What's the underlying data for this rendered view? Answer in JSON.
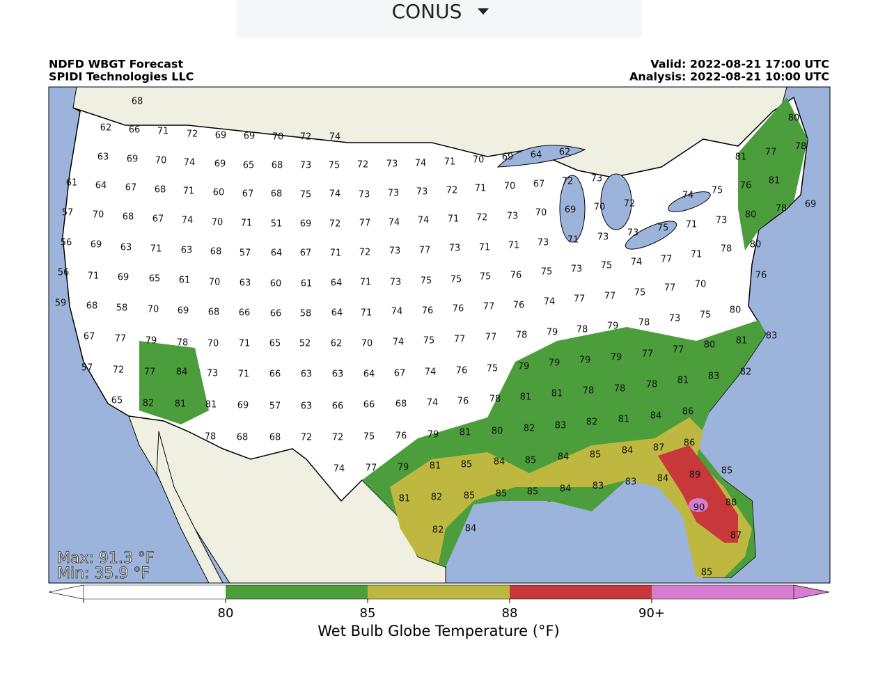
{
  "header": {
    "selector": "CONUS"
  },
  "map": {
    "title": "NDFD WBGT Forecast",
    "credit": "SPIDI Technologies LLC",
    "valid": "Valid: 2022-08-21 17:00 UTC",
    "analysis": "Analysis: 2022-08-21 10:00 UTC",
    "max": "Max: 91.3 °F",
    "min": "Min: 35.9 °F",
    "stations": [
      68,
      62,
      66,
      71,
      72,
      69,
      69,
      70,
      72,
      74,
      63,
      69,
      70,
      74,
      69,
      65,
      68,
      73,
      75,
      72,
      73,
      74,
      71,
      70,
      69,
      64,
      62,
      81,
      77,
      80,
      78,
      61,
      64,
      67,
      68,
      71,
      60,
      67,
      68,
      75,
      74,
      73,
      73,
      73,
      72,
      71,
      70,
      67,
      72,
      73,
      74,
      75,
      76,
      81,
      57,
      70,
      68,
      67,
      74,
      70,
      71,
      51,
      69,
      72,
      77,
      74,
      74,
      71,
      72,
      73,
      70,
      69,
      70,
      72,
      75,
      71,
      73,
      80,
      69,
      78,
      56,
      69,
      63,
      71,
      63,
      68,
      57,
      64,
      67,
      71,
      72,
      73,
      77,
      73,
      71,
      71,
      73,
      71,
      73,
      73,
      78,
      80,
      71,
      77,
      56,
      71,
      69,
      65,
      61,
      70,
      63,
      60,
      61,
      64,
      71,
      73,
      75,
      75,
      75,
      76,
      75,
      73,
      75,
      74,
      70,
      76,
      77,
      59,
      68,
      58,
      70,
      69,
      68,
      66,
      66,
      58,
      64,
      71,
      74,
      76,
      76,
      77,
      76,
      74,
      77,
      77,
      75,
      73,
      75,
      80,
      67,
      77,
      79,
      78,
      70,
      71,
      65,
      52,
      62,
      70,
      74,
      75,
      77,
      77,
      78,
      79,
      78,
      79,
      78,
      80,
      81,
      83,
      77,
      57,
      72,
      77,
      84,
      73,
      71,
      66,
      63,
      63,
      64,
      67,
      74,
      76,
      75,
      79,
      79,
      79,
      79,
      77,
      81,
      83,
      82,
      65,
      82,
      81,
      81,
      69,
      57,
      63,
      66,
      66,
      68,
      74,
      76,
      78,
      81,
      81,
      78,
      78,
      78,
      84,
      86,
      78,
      68,
      68,
      72,
      72,
      75,
      76,
      79,
      81,
      80,
      82,
      83,
      82,
      81,
      87,
      86,
      74,
      77,
      79,
      81,
      85,
      84,
      85,
      84,
      85,
      84,
      89,
      85,
      84,
      81,
      82,
      85,
      85,
      85,
      84,
      83,
      83,
      90,
      88,
      82,
      84,
      87,
      85
    ]
  },
  "colorbar": {
    "label": "Wet Bulb Globe Temperature (°F)",
    "colors": [
      "#ffffff",
      "#4c9e3c",
      "#bfb840",
      "#c8383a",
      "#d67dd2"
    ],
    "ticks": [
      80,
      85,
      88,
      {
        "value": 90,
        "label": "90+"
      }
    ]
  }
}
